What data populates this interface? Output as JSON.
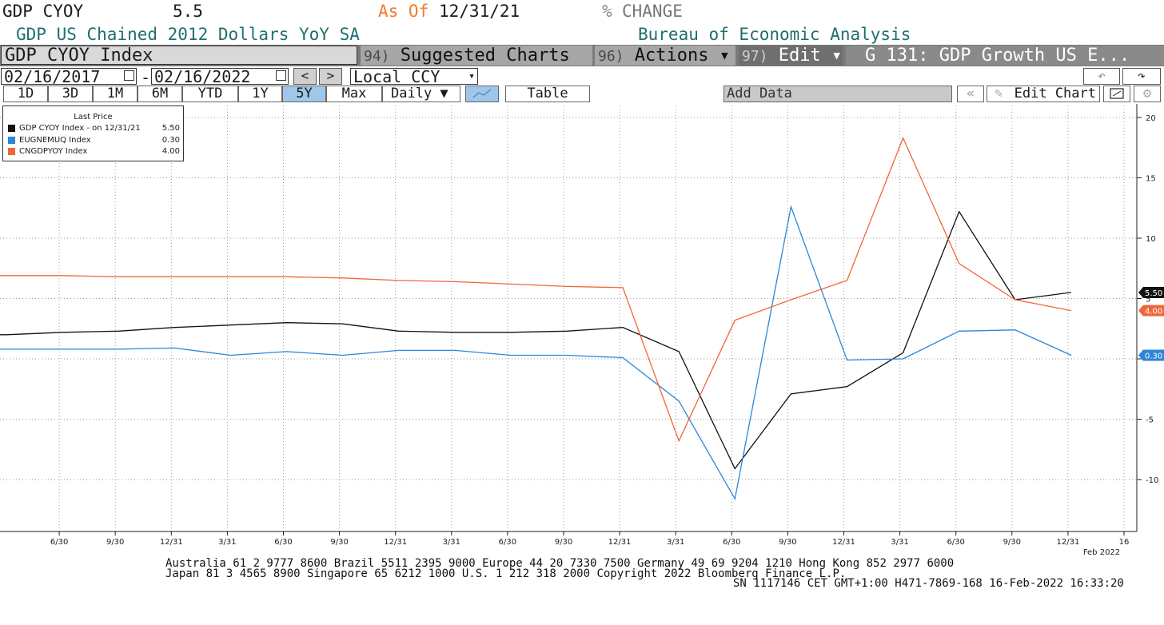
{
  "header": {
    "ticker": "GDP CYOY",
    "last": "5.5",
    "asof_label": "As Of",
    "asof_date": "12/31/21",
    "change_symbol": "%",
    "change_label": "CHANGE",
    "description": "GDP US Chained 2012 Dollars YoY SA",
    "source": "Bureau of Economic Analysis"
  },
  "toolbar": {
    "index_name": "GDP CYOY Index",
    "suggested_num": "94)",
    "suggested_label": "Suggested Charts",
    "actions_num": "96)",
    "actions_label": "Actions ▾",
    "edit_num": "97)",
    "edit_label": "Edit ▾",
    "chart_name": "G 131: GDP Growth US E..."
  },
  "dates": {
    "start": "02/16/2017",
    "dash": "-",
    "end": "02/16/2022",
    "prev": "<",
    "next": ">",
    "currency": "Local CCY",
    "currency_arrow": "▾",
    "undo": "↶",
    "redo": "↷"
  },
  "ranges": [
    "1D",
    "3D",
    "1M",
    "6M",
    "YTD",
    "1Y",
    "5Y",
    "Max"
  ],
  "active_range": "5Y",
  "controls": {
    "frequency": "Daily ▼",
    "table": "Table",
    "add_data": "Add Data",
    "collapse": "«",
    "edit_chart": "Edit Chart"
  },
  "legend": {
    "title": "Last Price",
    "entries": [
      {
        "name": "GDP CYOY Index - on 12/31/21",
        "value": "5.50",
        "color": "#111111"
      },
      {
        "name": "EUGNEMUQ Index",
        "value": "0.30",
        "color": "#2d86d6"
      },
      {
        "name": "CNGDPYOY Index",
        "value": "4.00",
        "color": "#f0663a"
      }
    ]
  },
  "chart_data": {
    "type": "line",
    "x": [
      "3/31/17",
      "6/30/17",
      "9/30/17",
      "12/31/17",
      "3/31/18",
      "6/30/18",
      "9/30/18",
      "12/31/18",
      "3/31/19",
      "6/30/19",
      "9/30/19",
      "12/31/19",
      "3/31/20",
      "6/30/20",
      "9/30/20",
      "12/31/20",
      "3/31/21",
      "6/30/21",
      "9/30/21",
      "12/31/21"
    ],
    "series": [
      {
        "name": "GDP CYOY Index",
        "color": "#111111",
        "values": [
          2.0,
          2.2,
          2.3,
          2.6,
          2.8,
          3.0,
          2.9,
          2.3,
          2.2,
          2.2,
          2.3,
          2.6,
          0.6,
          -9.1,
          -2.9,
          -2.3,
          0.5,
          12.2,
          4.9,
          5.5
        ]
      },
      {
        "name": "EUGNEMUQ Index",
        "color": "#2d86d6",
        "values": [
          0.8,
          0.8,
          0.8,
          0.9,
          0.3,
          0.6,
          0.3,
          0.7,
          0.7,
          0.3,
          0.3,
          0.1,
          -3.5,
          -11.6,
          12.6,
          -0.1,
          0.0,
          2.3,
          2.4,
          0.3
        ]
      },
      {
        "name": "CNGDPYOY Index",
        "color": "#f0663a",
        "values": [
          6.9,
          6.9,
          6.8,
          6.8,
          6.8,
          6.8,
          6.7,
          6.5,
          6.4,
          6.2,
          6.0,
          5.9,
          -6.8,
          3.2,
          4.9,
          6.5,
          18.3,
          7.9,
          4.9,
          4.0
        ]
      }
    ],
    "last_labels": [
      "5.50",
      "4.00",
      "0.30"
    ],
    "ylim": [
      -13,
      21
    ],
    "yticks": [
      -10,
      -5,
      0,
      5,
      10,
      15,
      20
    ],
    "ytick_labels": [
      "-10",
      "-5",
      "",
      "5",
      "10",
      "15",
      "20"
    ],
    "xtick_labels": [
      "6/30",
      "9/30",
      "12/31",
      "3/31",
      "6/30",
      "9/30",
      "12/31",
      "3/31",
      "6/30",
      "9/30",
      "12/31",
      "3/31",
      "6/30",
      "9/30",
      "12/31",
      "3/31",
      "6/30",
      "9/30",
      "12/31",
      "16"
    ],
    "x_end_label": "Feb 2022",
    "grid": true
  },
  "footer": {
    "line1": "Australia 61 2 9777 8600 Brazil 5511 2395 9000 Europe 44 20 7330 7500 Germany 49 69 9204 1210 Hong Kong 852 2977 6000",
    "line2": "Japan 81 3 4565 8900       Singapore 65 6212 1000       U.S. 1 212 318 2000             Copyright 2022 Bloomberg Finance L.P.",
    "line3": "SN 1117146 CET  GMT+1:00 H471-7869-168 16-Feb-2022 16:33:20"
  }
}
